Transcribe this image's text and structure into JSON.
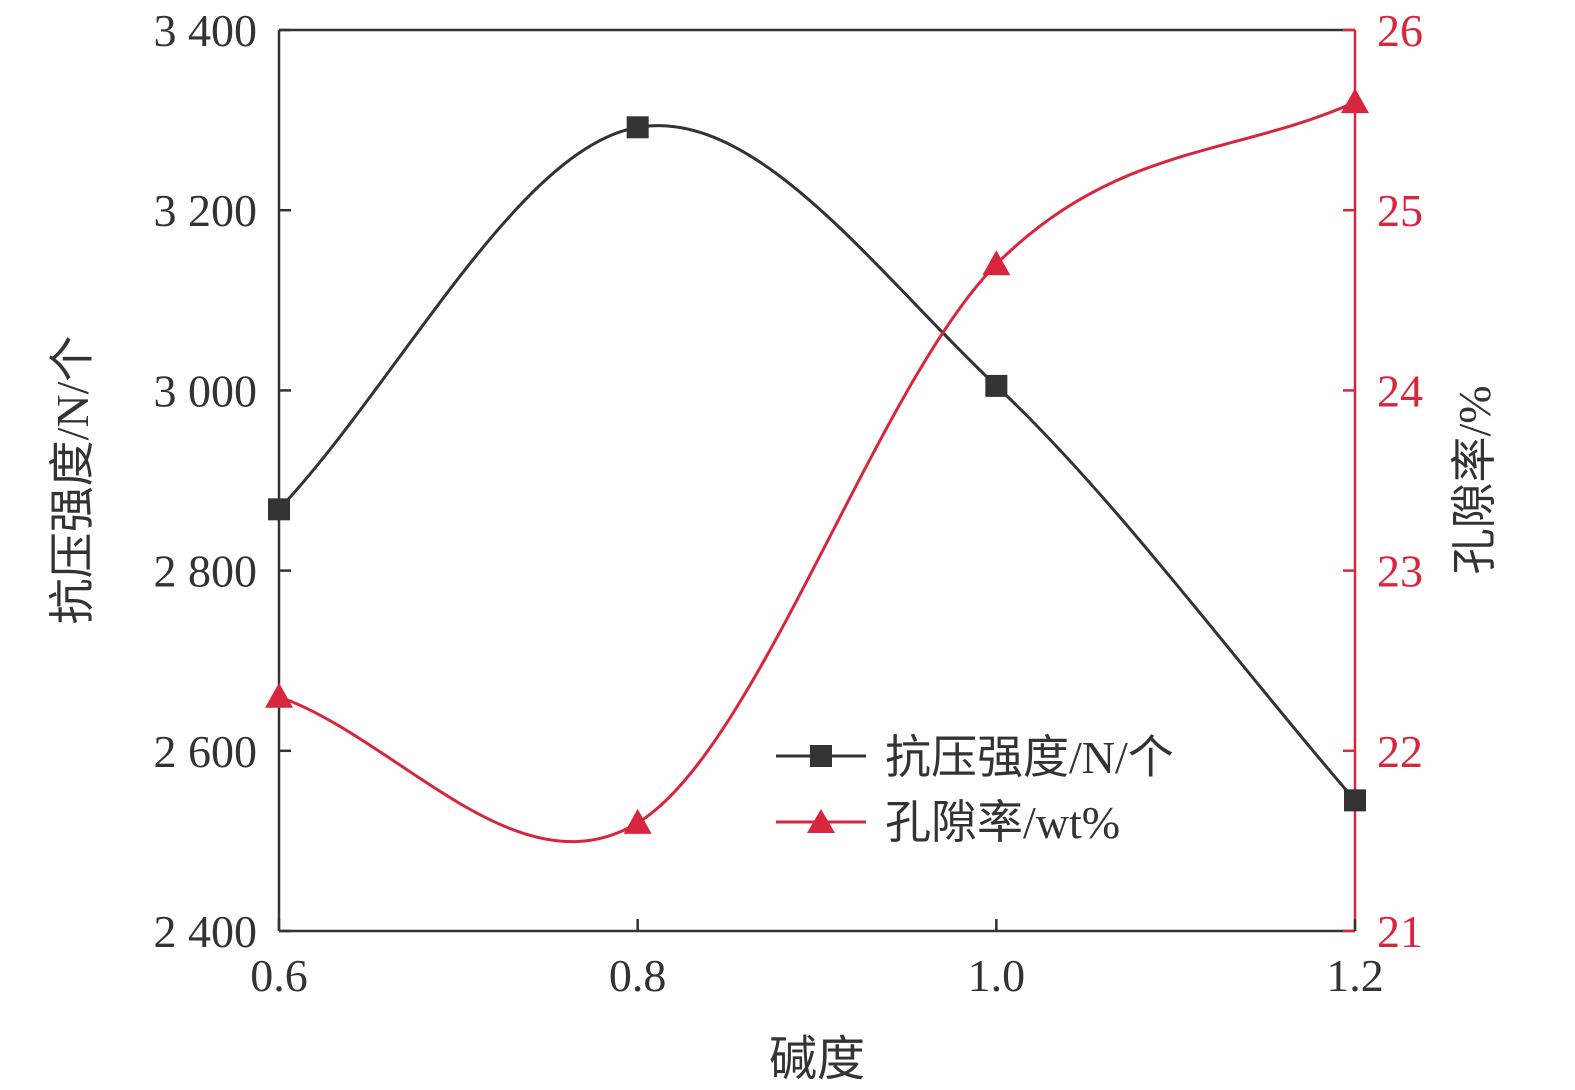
{
  "colors": {
    "strength": "#333333",
    "porosity": "#d7263d",
    "axis": "#333333"
  },
  "chart_data": {
    "type": "line",
    "x": [
      0.6,
      0.8,
      1.0,
      1.2
    ],
    "x_tick_labels": [
      "0.6",
      "0.8",
      "1.0",
      "1.2"
    ],
    "xlabel": "碱度",
    "xlim": [
      0.6,
      1.2
    ],
    "y_left": {
      "label": "抗压强度/N/个",
      "lim": [
        2400,
        3400
      ],
      "ticks": [
        2400,
        2600,
        2800,
        3000,
        3200,
        3400
      ],
      "tick_labels": [
        "2 400",
        "2 600",
        "2 800",
        "3 000",
        "3 200",
        "3 400"
      ]
    },
    "y_right": {
      "label": "孔隙率/%",
      "lim": [
        21,
        26
      ],
      "ticks": [
        21,
        22,
        23,
        24,
        25,
        26
      ],
      "tick_labels": [
        "21",
        "22",
        "23",
        "24",
        "25",
        "26"
      ]
    },
    "series": [
      {
        "name": "抗压强度/N/个",
        "axis": "left",
        "marker": "square",
        "values": [
          2868,
          3292,
          3005,
          2545
        ]
      },
      {
        "name": "孔隙率/wt%",
        "axis": "right",
        "marker": "triangle",
        "values": [
          22.3,
          21.6,
          24.7,
          25.6
        ]
      }
    ],
    "legend_position": "lower-right",
    "grid": false,
    "smooth": true
  }
}
